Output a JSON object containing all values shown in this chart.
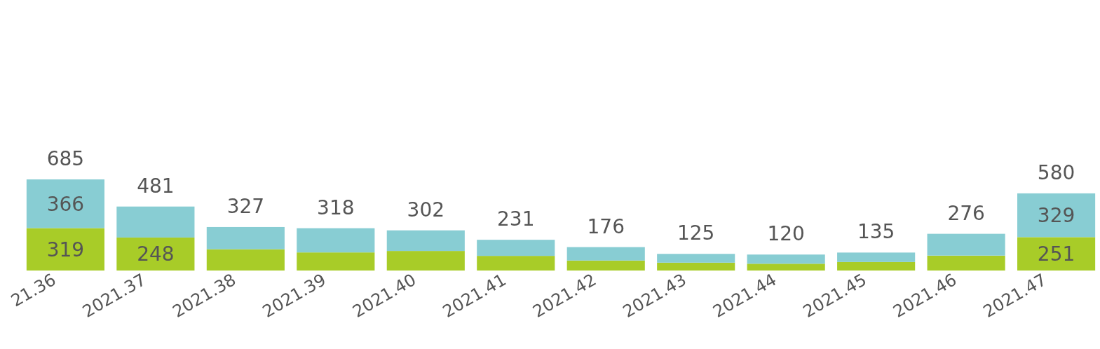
{
  "chart_data": {
    "type": "bar",
    "stacked": true,
    "categories": [
      "21.36",
      "2021.37",
      "2021.38",
      "2021.39",
      "2021.40",
      "2021.41",
      "2021.42",
      "2021.43",
      "2021.44",
      "2021.45",
      "2021.46",
      "2021.47"
    ],
    "series": [
      {
        "color": "#a8cc28",
        "values": [
          319,
          248,
          160,
          136,
          147,
          110,
          75,
          59,
          51,
          64,
          112,
          251
        ],
        "value_labels": [
          "319",
          "248",
          null,
          null,
          null,
          null,
          null,
          null,
          null,
          null,
          null,
          "251"
        ]
      },
      {
        "color": "#88cdd3",
        "values": [
          366,
          233,
          167,
          182,
          155,
          121,
          101,
          66,
          69,
          71,
          164,
          329
        ],
        "value_labels": [
          "366",
          null,
          null,
          null,
          null,
          null,
          null,
          null,
          null,
          null,
          null,
          "329"
        ]
      }
    ],
    "totals": [
      "685",
      "481",
      "327",
      "318",
      "302",
      "231",
      "176",
      "125",
      "120",
      "135",
      "276",
      "580"
    ]
  }
}
